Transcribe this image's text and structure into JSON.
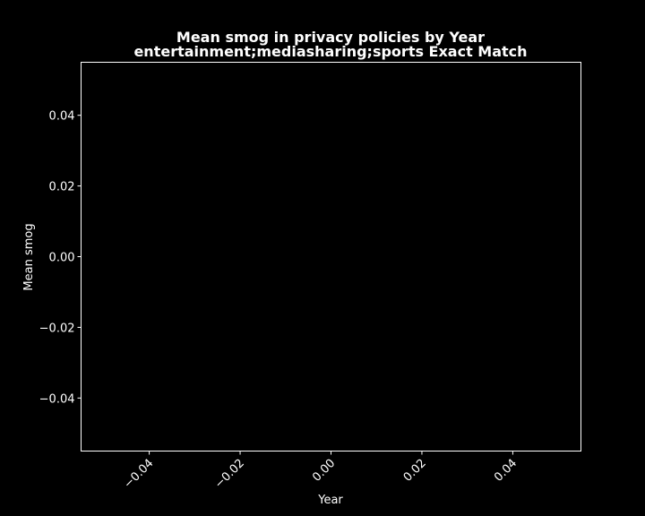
{
  "chart_data": {
    "type": "line",
    "title_line1": "Mean smog in privacy policies by Year",
    "title_line2": "entertainment;mediasharing;sports Exact Match",
    "xlabel": "Year",
    "ylabel": "Mean smog",
    "x_ticks": [
      "−0.04",
      "−0.02",
      "0.00",
      "0.02",
      "0.04"
    ],
    "y_ticks": [
      "0.04",
      "0.02",
      "0.00",
      "−0.02",
      "−0.04"
    ],
    "x_tick_values": [
      -0.04,
      -0.02,
      0.0,
      0.02,
      0.04
    ],
    "y_tick_values": [
      0.04,
      0.02,
      0.0,
      -0.02,
      -0.04
    ],
    "xlim": [
      -0.055,
      0.055
    ],
    "ylim": [
      -0.055,
      0.055
    ],
    "series": [],
    "grid": false,
    "background_color": "#000000",
    "foreground_color": "#ffffff"
  }
}
